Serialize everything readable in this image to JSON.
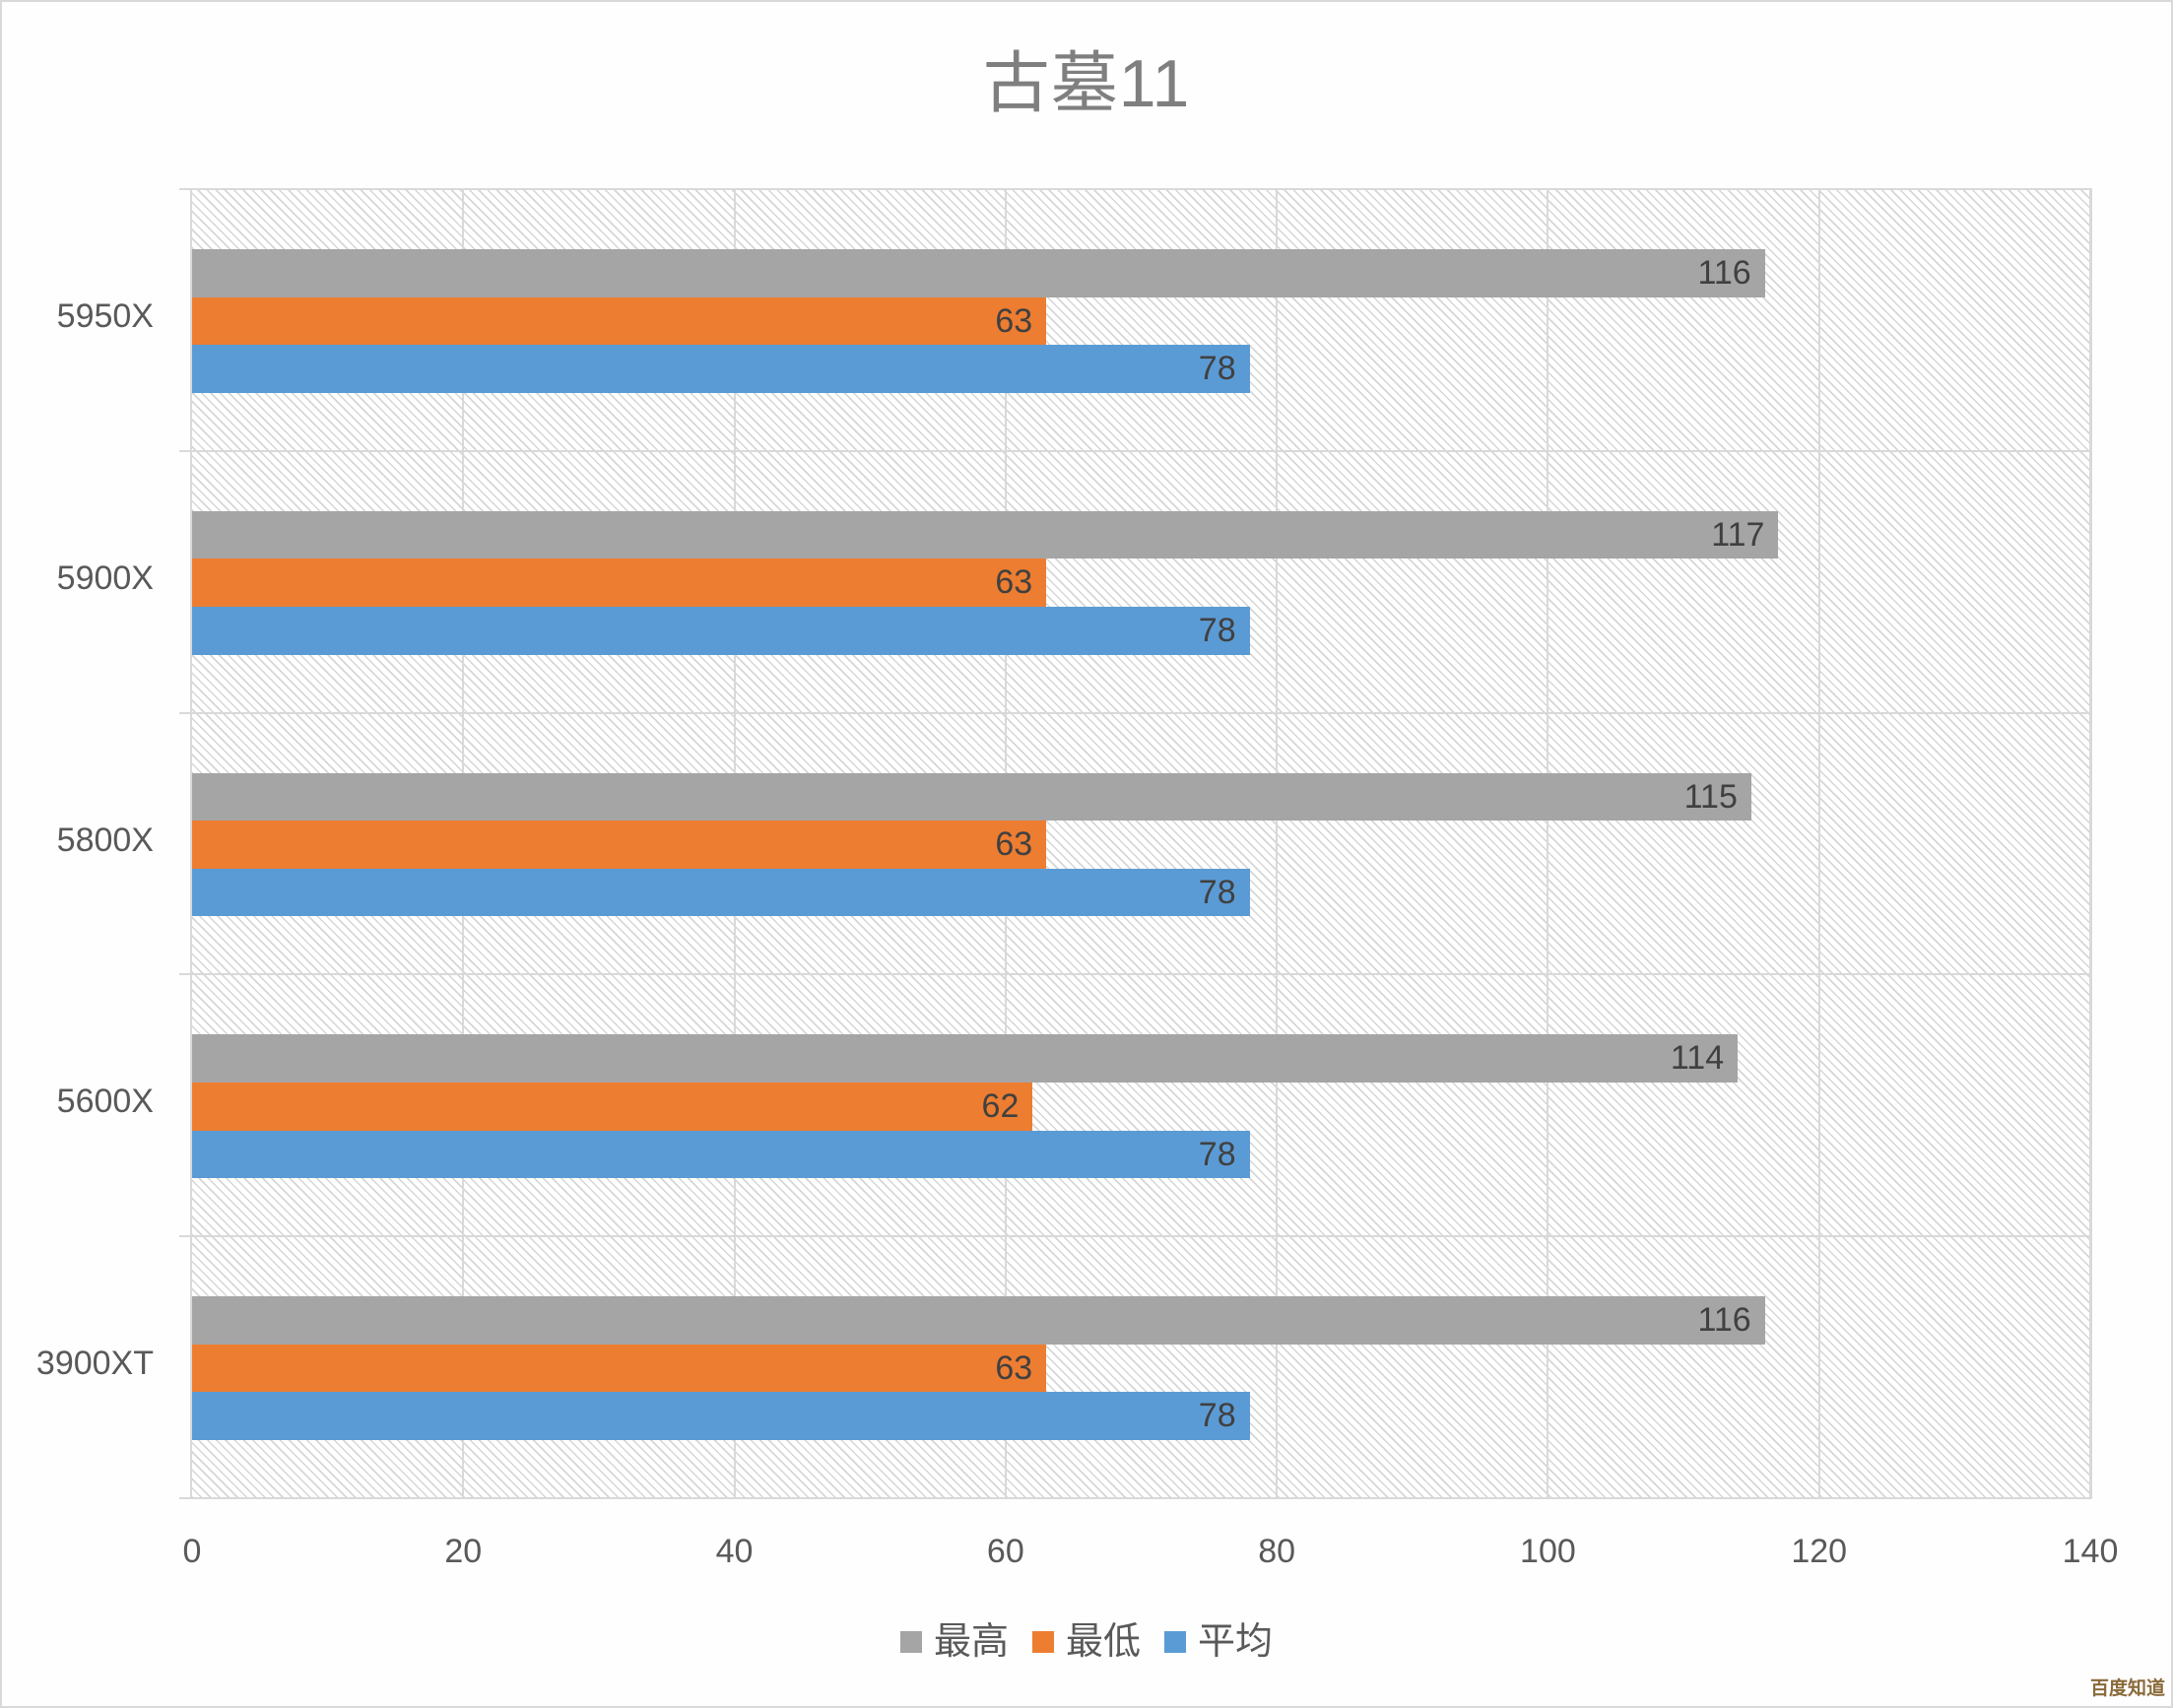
{
  "chart_data": {
    "type": "bar",
    "orientation": "horizontal",
    "title": "古墓11",
    "categories": [
      "5950X",
      "5900X",
      "5800X",
      "5600X",
      "3900XT"
    ],
    "series": [
      {
        "name": "最高",
        "color": "#a5a5a5",
        "values": [
          116,
          117,
          115,
          114,
          116
        ]
      },
      {
        "name": "最低",
        "color": "#ed7d31",
        "values": [
          63,
          63,
          63,
          62,
          63
        ]
      },
      {
        "name": "平均",
        "color": "#5b9bd5",
        "values": [
          78,
          78,
          78,
          78,
          78
        ]
      }
    ],
    "xlabel": "",
    "ylabel": "",
    "xlim": [
      0,
      140
    ],
    "xticks": [
      "0",
      "20",
      "40",
      "60",
      "80",
      "100",
      "120",
      "140"
    ],
    "grid": true,
    "legend_position": "bottom",
    "data_labels": true
  },
  "watermark": "百度知道"
}
